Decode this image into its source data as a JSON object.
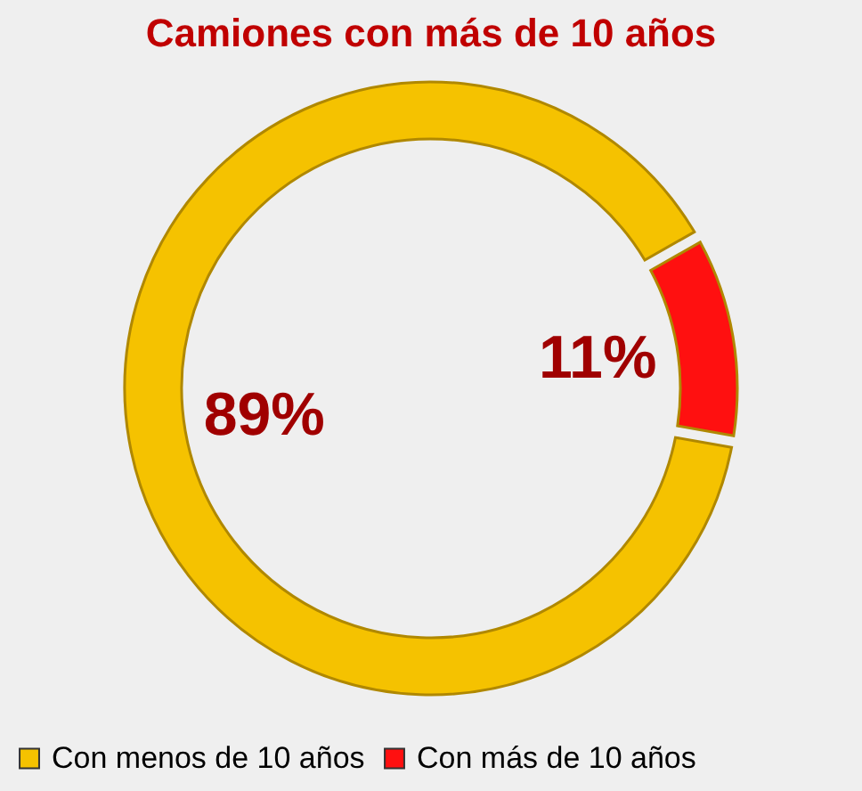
{
  "chart_data": {
    "type": "donut",
    "title": "Camiones con más de 10 años",
    "categories": [
      "Con menos de 10 años",
      "Con más de 10 años"
    ],
    "values": [
      89,
      11
    ],
    "colors": [
      "#f5c200",
      "#ff1010"
    ],
    "value_labels": [
      "89%",
      "11%"
    ],
    "legend": "bottom"
  }
}
